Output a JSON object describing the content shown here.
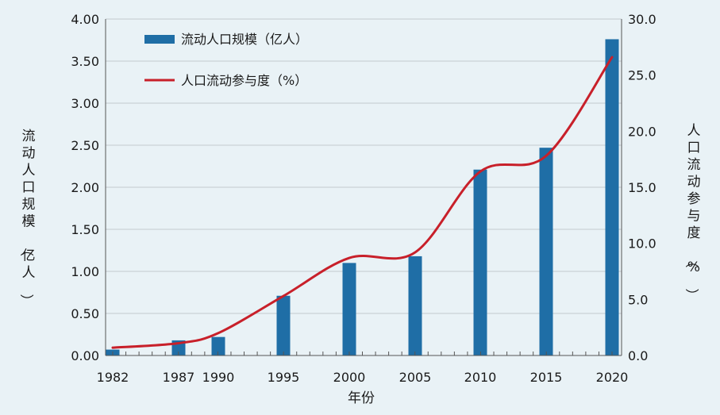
{
  "chart_data": {
    "type": "bar",
    "x_categories": [
      "1982",
      "1987",
      "1990",
      "1995",
      "2000",
      "2005",
      "2010",
      "2015",
      "2020"
    ],
    "xlabel": "年份",
    "ylabel_left": "流动人口规模（亿人）",
    "ylabel_right": "人口流动参与度（%）",
    "left_axis": {
      "min": 0,
      "max": 4.0,
      "ticks": [
        "0.00",
        "0.50",
        "1.00",
        "1.50",
        "2.00",
        "2.50",
        "3.00",
        "3.50",
        "4.00"
      ]
    },
    "right_axis": {
      "min": 0,
      "max": 30.0,
      "ticks": [
        "0.0",
        "5.0",
        "10.0",
        "15.0",
        "20.0",
        "25.0",
        "30.0"
      ]
    },
    "grid": true,
    "legend_position": "top-left",
    "series": [
      {
        "name": "流动人口规模（亿人）",
        "type": "bar",
        "axis": "left",
        "color": "#1f6ea6",
        "values": [
          0.07,
          0.18,
          0.22,
          0.71,
          1.1,
          1.18,
          2.21,
          2.47,
          3.76
        ]
      },
      {
        "name": "人口流动参与度（%）",
        "type": "line",
        "axis": "right",
        "color": "#c8202a",
        "values": [
          0.7,
          1.1,
          2.0,
          5.3,
          8.7,
          9.2,
          16.4,
          17.8,
          26.6
        ]
      }
    ]
  }
}
